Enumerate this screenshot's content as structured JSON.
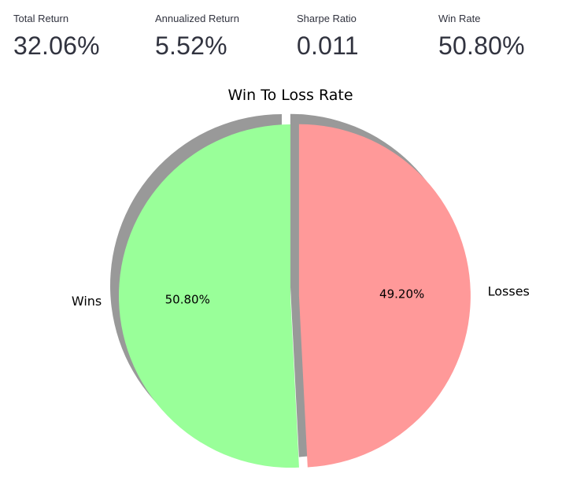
{
  "metrics": [
    {
      "label": "Total Return",
      "value": "32.06%"
    },
    {
      "label": "Annualized Return",
      "value": "5.52%"
    },
    {
      "label": "Sharpe Ratio",
      "value": "0.011"
    },
    {
      "label": "Win Rate",
      "value": "50.80%"
    }
  ],
  "chart_data": {
    "type": "pie",
    "title": "Win To Loss Rate",
    "labels": [
      "Wins",
      "Losses"
    ],
    "values": [
      50.8,
      49.2
    ],
    "pct_labels": [
      "50.80%",
      "49.20%"
    ],
    "colors": [
      "#99ff99",
      "#ff9999"
    ],
    "shadow": true,
    "explode": [
      0,
      0.05
    ],
    "start_angle": 90
  }
}
